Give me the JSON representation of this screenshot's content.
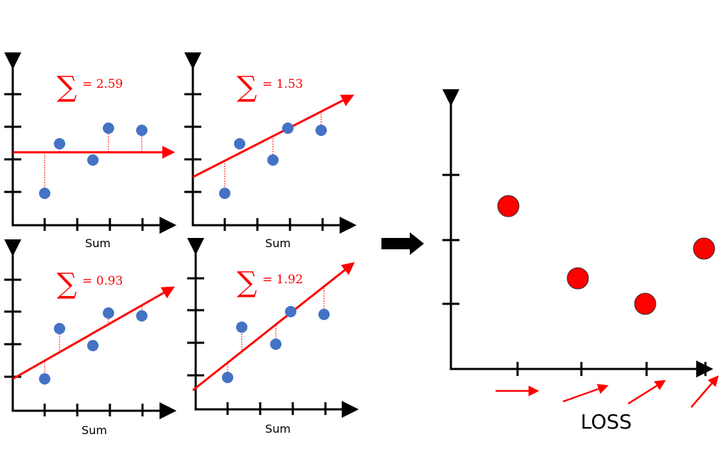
{
  "panels": [
    {
      "sum_symbol": "∑",
      "sum_text": "= 2.59",
      "xlabel": "Sum"
    },
    {
      "sum_symbol": "∑",
      "sum_text": "= 1.53",
      "xlabel": "Sum"
    },
    {
      "sum_symbol": "∑",
      "sum_text": "= 0.93",
      "xlabel": "Sum"
    },
    {
      "sum_symbol": "∑",
      "sum_text": "= 1.92",
      "xlabel": "Sum"
    }
  ],
  "loss_chart": {
    "xlabel": "LOSS",
    "loss_values": [
      2.59,
      1.53,
      0.93,
      1.92
    ]
  },
  "colors": {
    "points": "#4472c4",
    "fit": "#ff0000",
    "loss_points": "#ff0000"
  }
}
